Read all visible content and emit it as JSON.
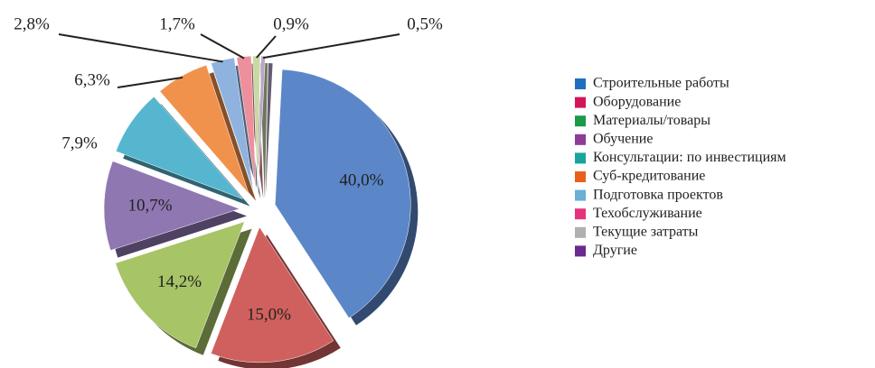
{
  "chart_data": {
    "type": "pie",
    "categories": [
      "Строительные работы",
      "Оборудование",
      "Материалы/товары",
      "Обучение",
      "Консультации: по инвестициям",
      "Суб-кредитование",
      "Подготовка проектов",
      "Техобслуживание",
      "Текущие затраты",
      "Другие"
    ],
    "values": [
      40.0,
      15.0,
      14.2,
      10.7,
      7.9,
      6.3,
      2.8,
      1.7,
      0.9,
      0.5
    ],
    "value_labels": [
      "40,0%",
      "15,0%",
      "14,2%",
      "10,7%",
      "7,9%",
      "6,3%",
      "2,8%",
      "1,7%",
      "0,9%",
      "0,5%"
    ],
    "colors": [
      "#5b87c9",
      "#d0605d",
      "#a7c466",
      "#8f77b2",
      "#56b6cf",
      "#f1924c",
      "#8fb2de",
      "#ee8f9c",
      "#c9d9a4",
      "#b8a7cc"
    ],
    "legend_colors": [
      "#1f6fbf",
      "#d4145a",
      "#1a9a4a",
      "#8e3c97",
      "#1aa39a",
      "#e8601c",
      "#6baed6",
      "#e7327c",
      "#b0b0b0",
      "#6a2a8e"
    ],
    "legend": "right"
  }
}
